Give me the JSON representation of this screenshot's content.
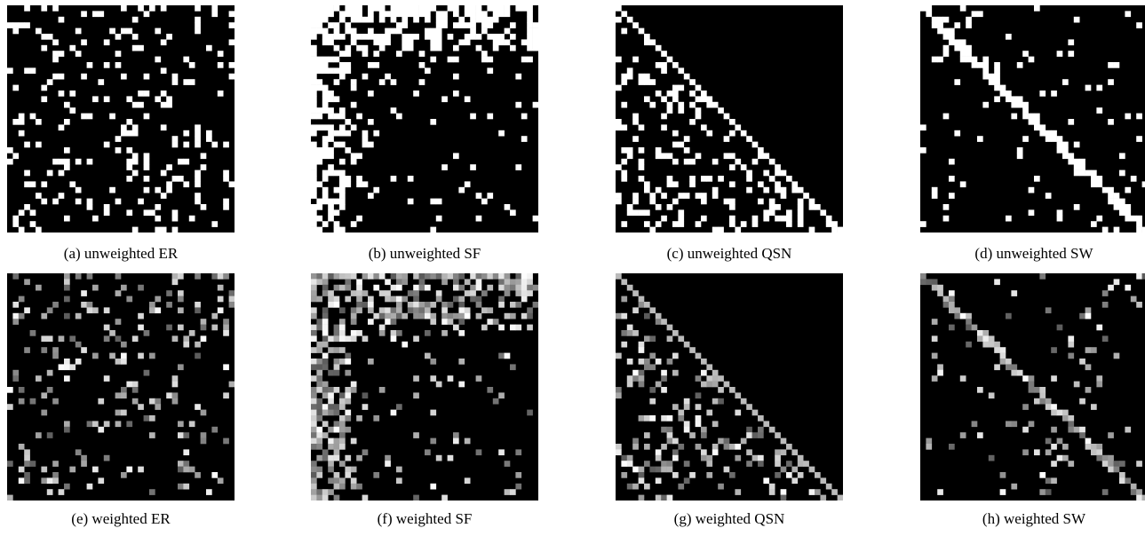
{
  "figure": {
    "panels": [
      {
        "caption": "(a) unweighted ER"
      },
      {
        "caption": "(b) unweighted SF"
      },
      {
        "caption": "(c) unweighted QSN"
      },
      {
        "caption": "(d) unweighted SW"
      },
      {
        "caption": "(e) weighted ER"
      },
      {
        "caption": "(f) weighted SF"
      },
      {
        "caption": "(g) weighted QSN"
      },
      {
        "caption": "(h) weighted SW"
      }
    ]
  },
  "chart_data": [
    {
      "type": "heatmap",
      "pattern": "random-uniform",
      "weighted": false,
      "size": 40,
      "density": 0.14,
      "seed": 11
    },
    {
      "type": "heatmap",
      "pattern": "scale-free",
      "weighted": false,
      "size": 40,
      "density": 0.1,
      "seed": 23
    },
    {
      "type": "heatmap",
      "pattern": "lower-triangular-with-diagonal",
      "weighted": false,
      "size": 40,
      "density": 0.22,
      "seed": 37
    },
    {
      "type": "heatmap",
      "pattern": "small-world-diagonal",
      "weighted": false,
      "size": 40,
      "density": 0.06,
      "seed": 41
    },
    {
      "type": "heatmap",
      "pattern": "random-uniform",
      "weighted": true,
      "size": 40,
      "density": 0.14,
      "seed": 53
    },
    {
      "type": "heatmap",
      "pattern": "scale-free",
      "weighted": true,
      "size": 40,
      "density": 0.1,
      "seed": 67
    },
    {
      "type": "heatmap",
      "pattern": "lower-triangular-with-diagonal",
      "weighted": true,
      "size": 40,
      "density": 0.22,
      "seed": 71
    },
    {
      "type": "heatmap",
      "pattern": "small-world-diagonal",
      "weighted": true,
      "size": 40,
      "density": 0.06,
      "seed": 83
    }
  ]
}
